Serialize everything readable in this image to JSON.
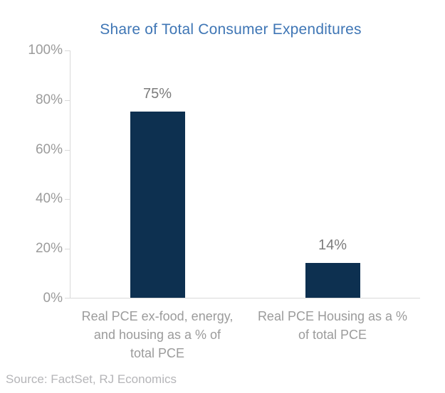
{
  "title": "Share of Total Consumer Expenditures",
  "source_note": "Source: FactSet, RJ Economics",
  "colors": {
    "title": "#3f76b5",
    "bar": "#0d3050",
    "axis_line": "#d9d9d9",
    "tick_label": "#9b9b9b",
    "value_label": "#7c7c7c",
    "category_label": "#9b9b9b",
    "source": "#b5b5b8",
    "background": "#ffffff"
  },
  "chart_data": {
    "type": "bar",
    "title": "Share of Total Consumer Expenditures",
    "categories": [
      "Real PCE ex-food, energy, and housing as a % of total PCE",
      "Real PCE Housing as a % of total PCE"
    ],
    "categories_wrapped": [
      "Real PCE ex-food, energy,\nand housing as a % of\ntotal PCE",
      "Real PCE Housing as a %\nof total PCE"
    ],
    "values": [
      75,
      14
    ],
    "value_labels": [
      "75%",
      "14%"
    ],
    "xlabel": "",
    "ylabel": "",
    "ylim": [
      0,
      100
    ],
    "ytick_step": 20,
    "yticks": [
      "100%",
      "80%",
      "60%",
      "40%",
      "20%",
      "0%"
    ],
    "grid": false,
    "legend": "none",
    "bar_color": "#0d3050",
    "source": "Source: FactSet, RJ Economics"
  }
}
